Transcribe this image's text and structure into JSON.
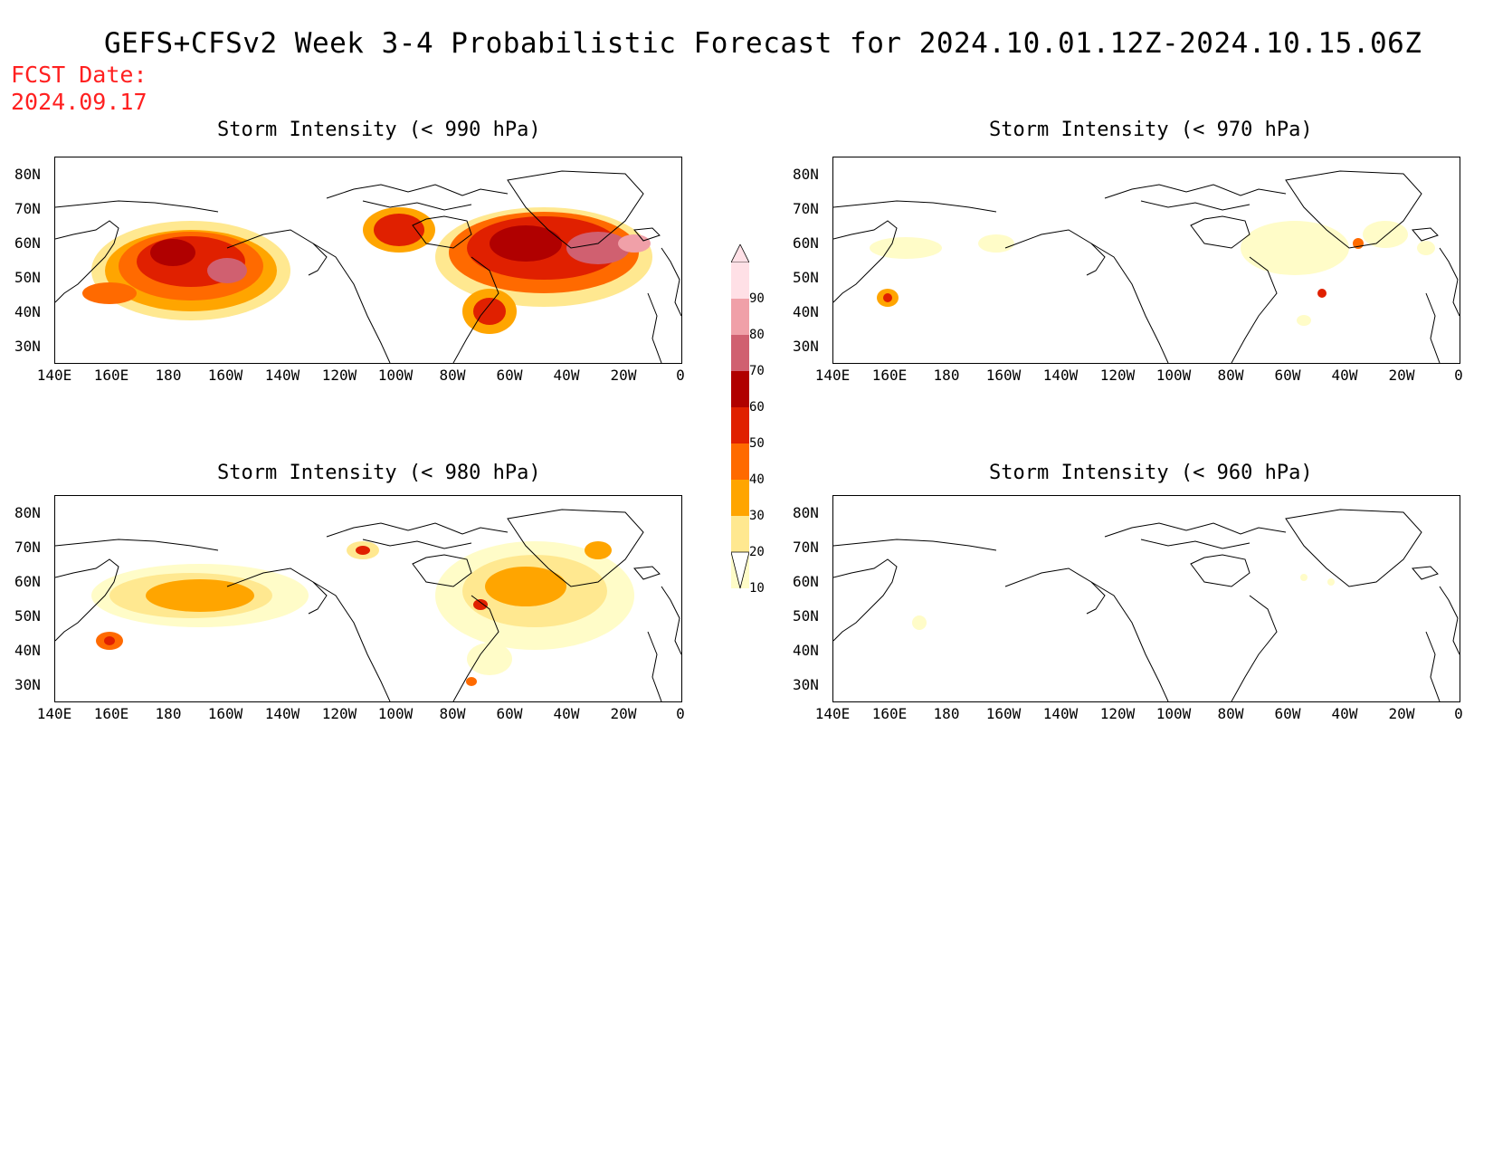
{
  "title": "GEFS+CFSv2 Week 3-4 Probabilistic Forecast for 2024.10.01.12Z-2024.10.15.06Z",
  "fcst_label": "FCST Date:",
  "fcst_date": "2024.09.17",
  "panels": [
    {
      "title": "Storm Intensity (< 990 hPa)",
      "intensity": "high"
    },
    {
      "title": "Storm Intensity (< 970 hPa)",
      "intensity": "low"
    },
    {
      "title": "Storm Intensity (< 980 hPa)",
      "intensity": "medium"
    },
    {
      "title": "Storm Intensity (< 960 hPa)",
      "intensity": "minimal"
    }
  ],
  "lat_labels": [
    "80N",
    "70N",
    "60N",
    "50N",
    "40N",
    "30N"
  ],
  "lon_labels": [
    "140E",
    "160E",
    "180",
    "160W",
    "140W",
    "120W",
    "100W",
    "80W",
    "60W",
    "40W",
    "20W",
    "0"
  ],
  "colorbar": {
    "levels": [
      "10",
      "20",
      "30",
      "40",
      "50",
      "60",
      "70",
      "80",
      "90"
    ],
    "colors": [
      "#fffcc8",
      "#ffe890",
      "#ffa500",
      "#ff6a00",
      "#e02000",
      "#b00000",
      "#d06070",
      "#f0a0a8",
      "#ffe0e6"
    ]
  }
}
